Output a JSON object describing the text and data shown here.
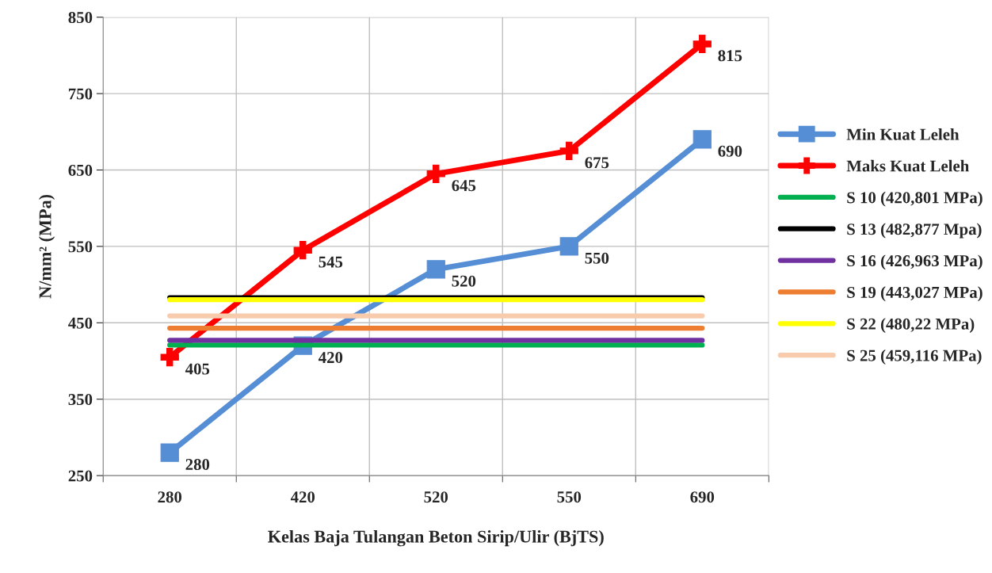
{
  "chart_data": {
    "type": "line",
    "xlabel": "Kelas Baja Tulangan Beton Sirip/Ulir (BjTS)",
    "ylabel": "N/mm² (MPa)",
    "categories": [
      "280",
      "420",
      "520",
      "550",
      "690"
    ],
    "series": [
      {
        "name": "Min Kuat Leleh",
        "color": "#558ed5",
        "marker": "square",
        "values": [
          280,
          420,
          520,
          550,
          690
        ],
        "value_labels": [
          "280",
          "420",
          "520",
          "550",
          "690"
        ]
      },
      {
        "name": "Maks Kuat Leleh",
        "color": "#ff0000",
        "marker": "cross",
        "values": [
          405,
          545,
          645,
          675,
          815
        ],
        "value_labels": [
          "405",
          "545",
          "645",
          "675",
          "815"
        ]
      },
      {
        "name": "S 10 (420,801 MPa)",
        "color": "#00b050",
        "marker": "none",
        "values": [
          420.801,
          420.801,
          420.801,
          420.801,
          420.801
        ]
      },
      {
        "name": "S 13 (482,877 Mpa)",
        "color": "#000000",
        "marker": "none",
        "values": [
          482.877,
          482.877,
          482.877,
          482.877,
          482.877
        ]
      },
      {
        "name": "S 16 (426,963 MPa)",
        "color": "#7030a0",
        "marker": "none",
        "values": [
          426.963,
          426.963,
          426.963,
          426.963,
          426.963
        ]
      },
      {
        "name": "S 19 (443,027 MPa)",
        "color": "#ed7d31",
        "marker": "none",
        "values": [
          443.027,
          443.027,
          443.027,
          443.027,
          443.027
        ]
      },
      {
        "name": "S 22 (480,22 MPa)",
        "color": "#ffff00",
        "marker": "none",
        "values": [
          480.22,
          480.22,
          480.22,
          480.22,
          480.22
        ]
      },
      {
        "name": "S 25 (459,116 MPa)",
        "color": "#f8cbad",
        "marker": "none",
        "values": [
          459.116,
          459.116,
          459.116,
          459.116,
          459.116
        ]
      }
    ],
    "ylim": [
      250,
      850
    ],
    "yticks": [
      250,
      350,
      450,
      550,
      650,
      750,
      850
    ],
    "grid": true,
    "legend": "right",
    "line_style": "solid"
  }
}
